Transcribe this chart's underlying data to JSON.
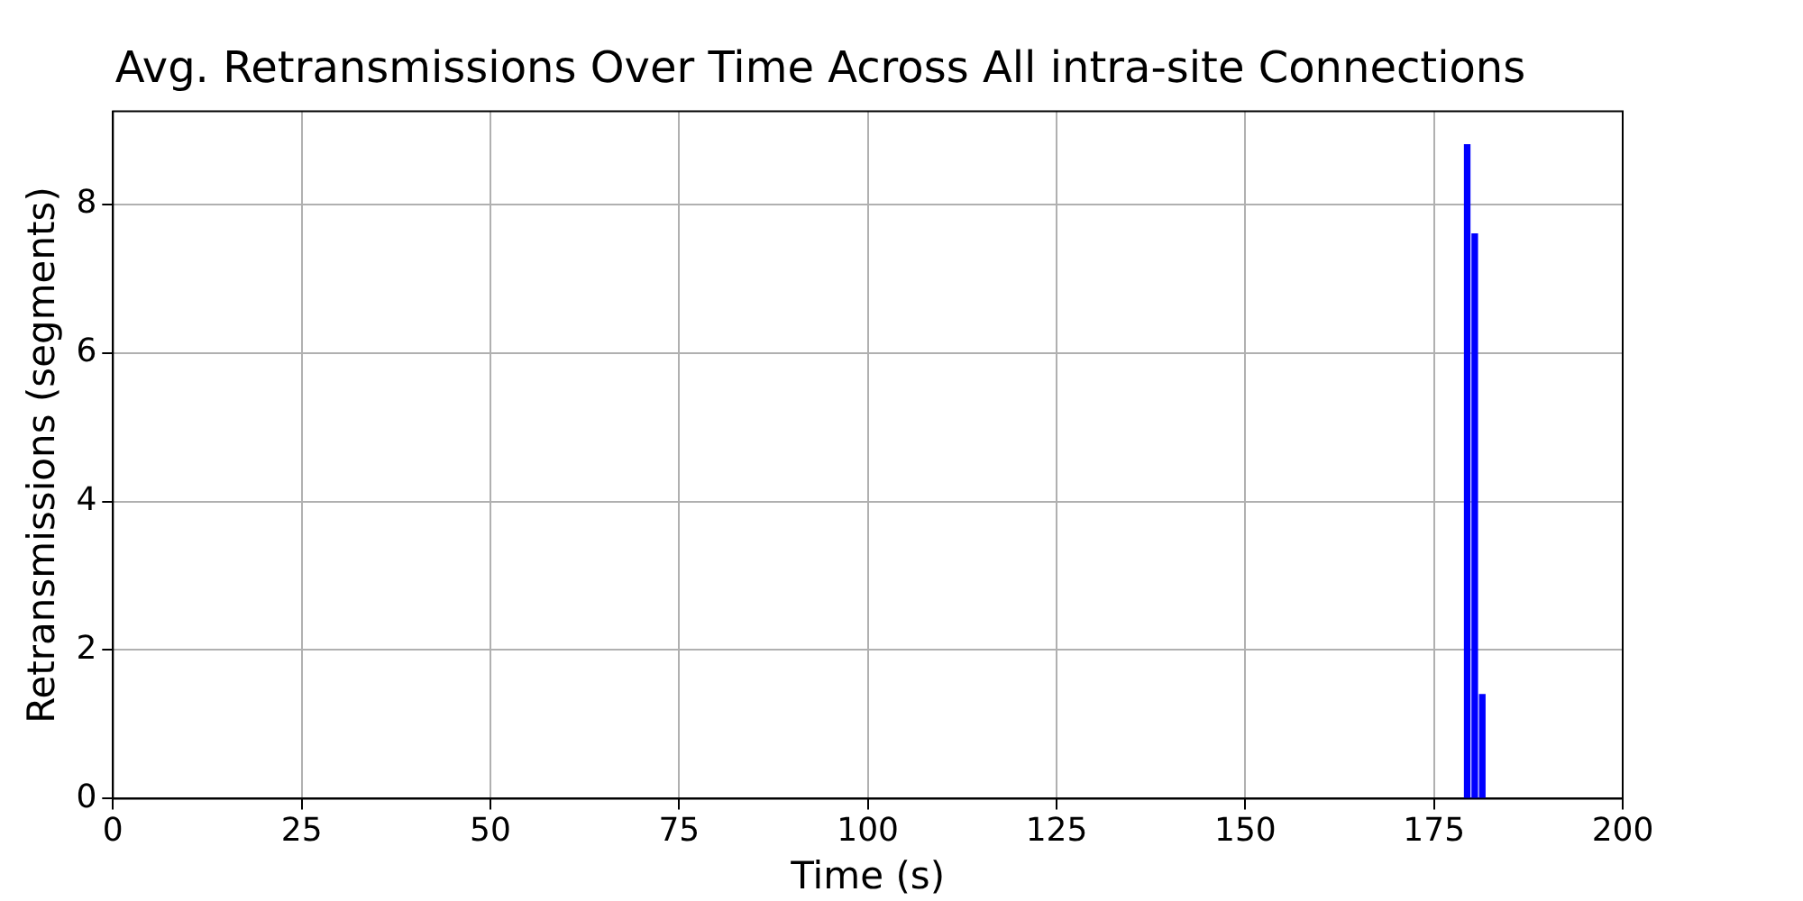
{
  "chart_data": {
    "type": "bar",
    "title": "Avg. Retransmissions Over Time Across All intra-site Connections",
    "xlabel": "Time (s)",
    "ylabel": "Retransmissions (segments)",
    "x": [
      179.4,
      180.4,
      181.4
    ],
    "values": [
      8.8,
      7.6,
      1.4
    ],
    "color": "#0000ff",
    "xlim": [
      0,
      200
    ],
    "xticks": [
      0,
      25,
      50,
      75,
      100,
      125,
      150,
      175,
      200
    ],
    "ylim": [
      0,
      9.25
    ],
    "yticks": [
      0,
      2,
      4,
      6,
      8
    ],
    "grid": true,
    "legend": false
  }
}
